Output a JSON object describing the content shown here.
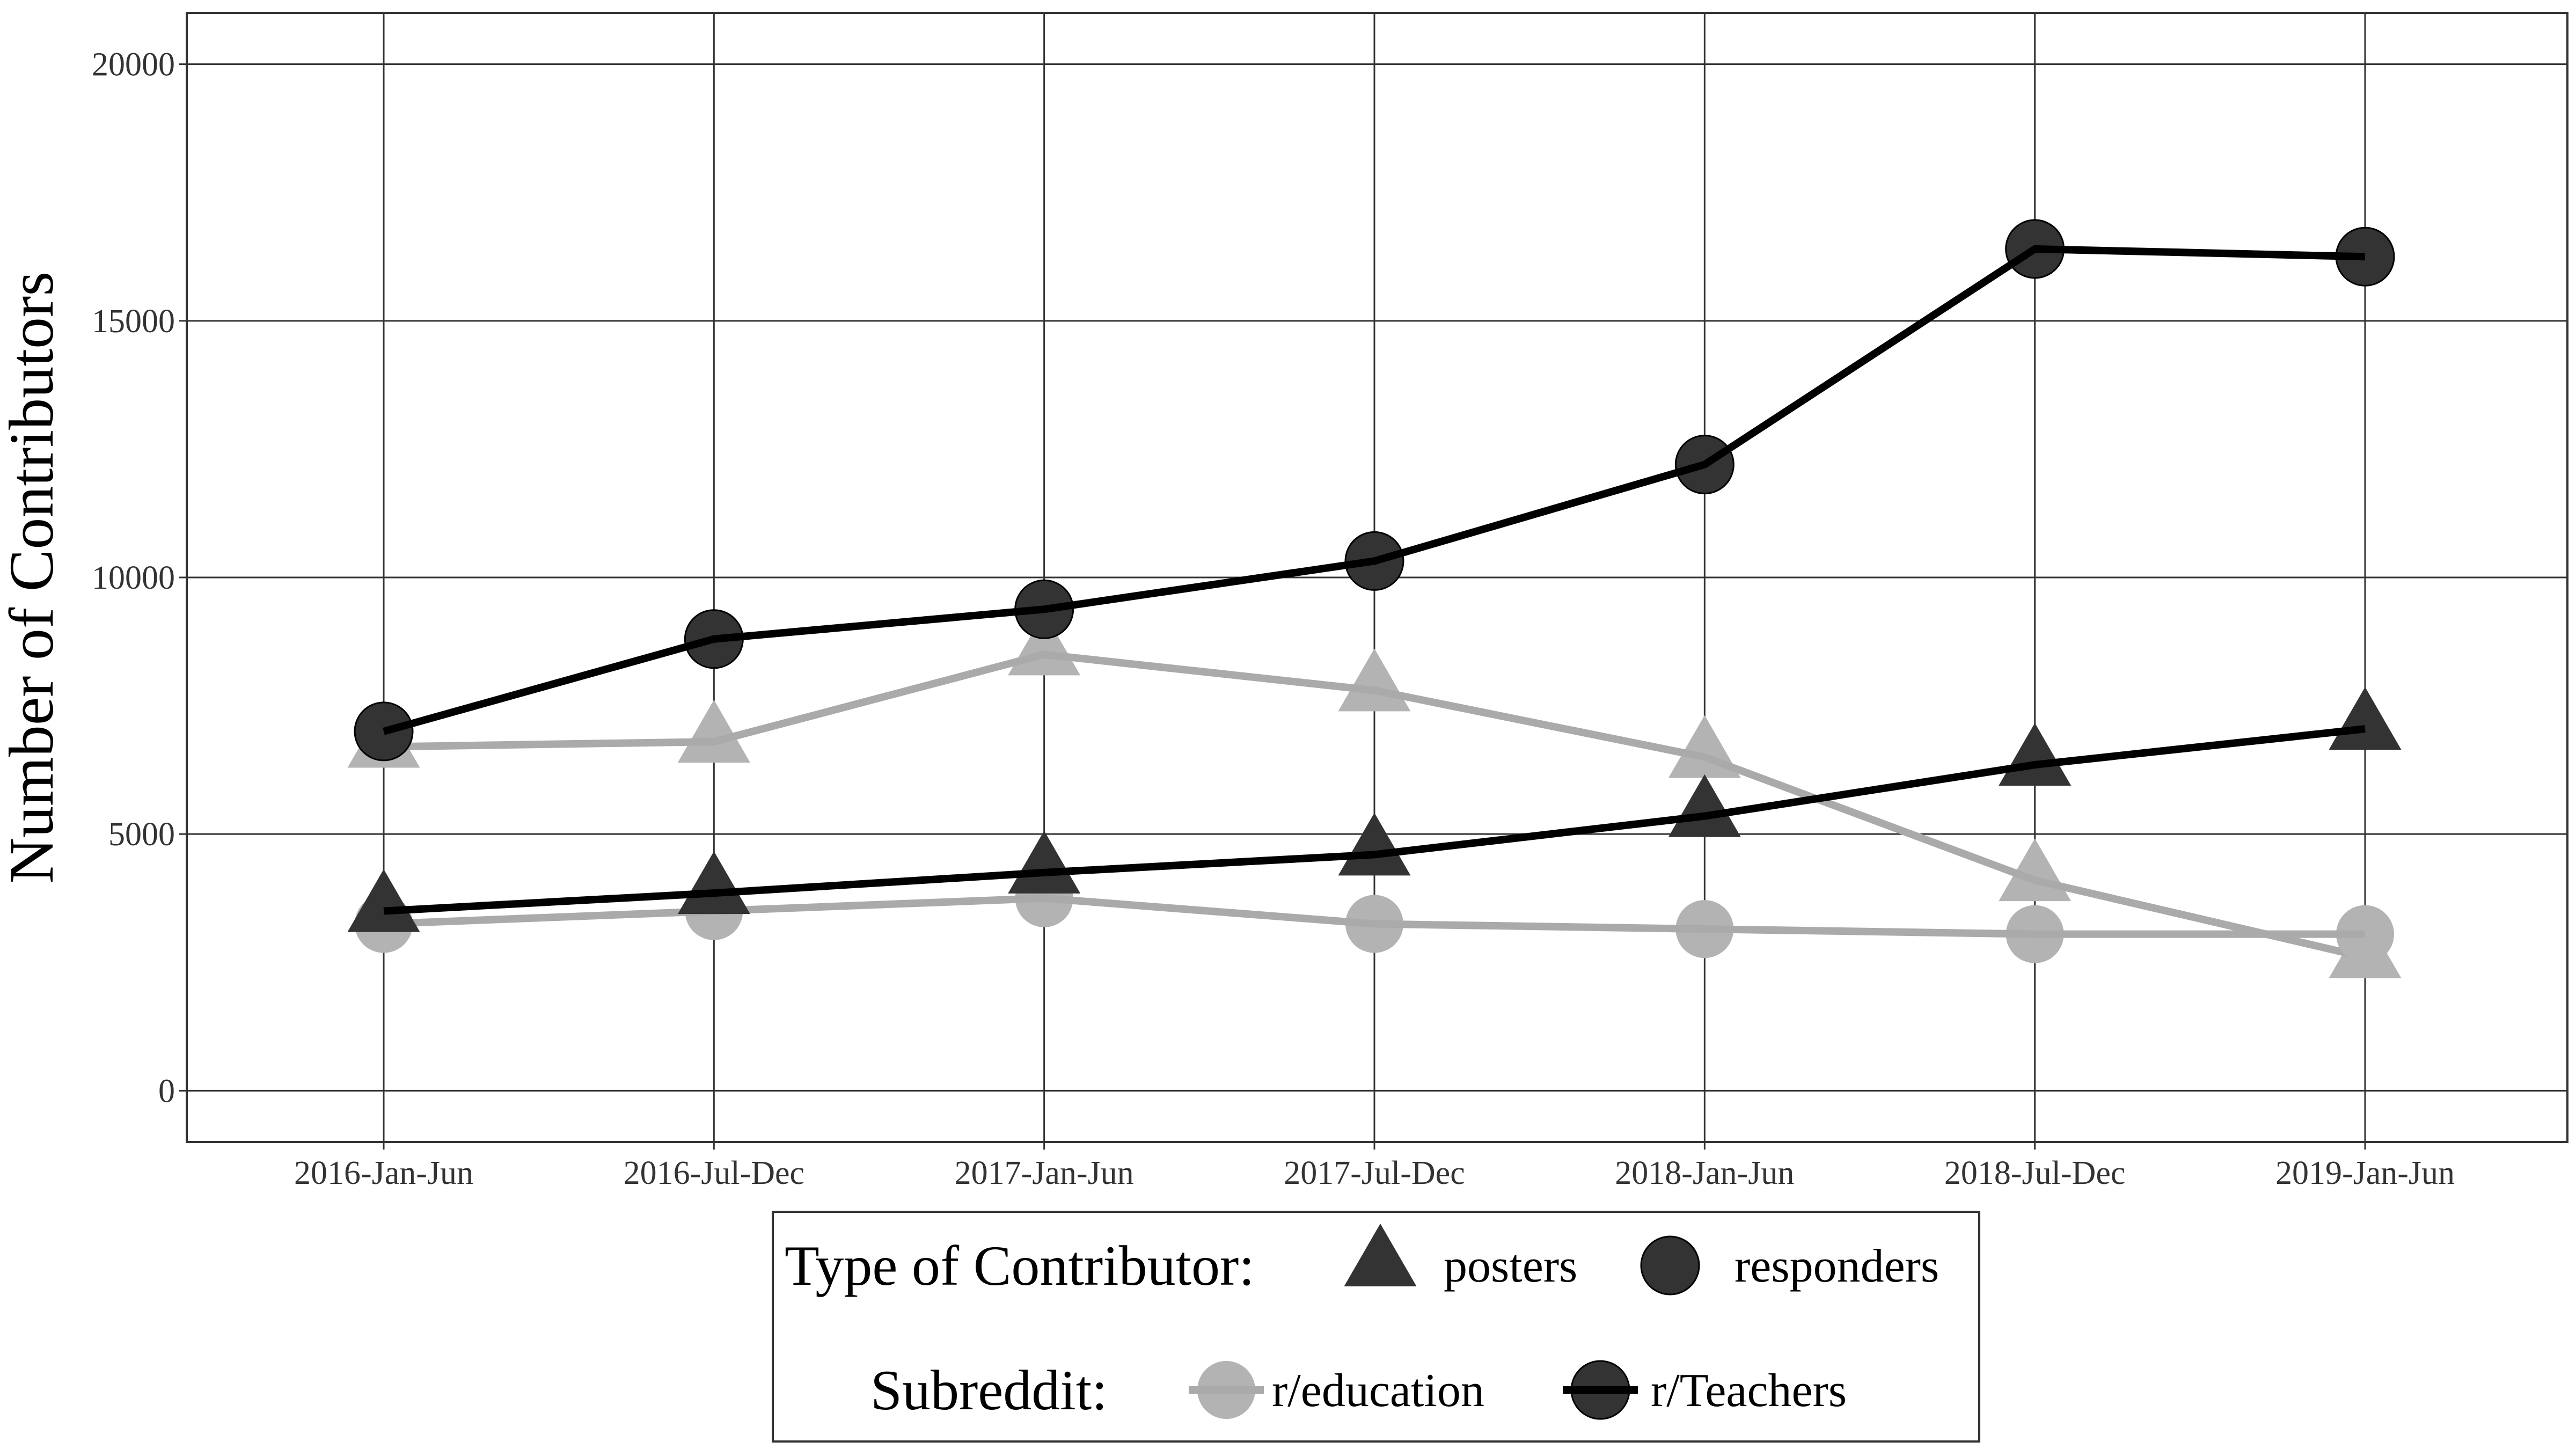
{
  "chart_data": {
    "type": "line",
    "title": "",
    "xlabel": "",
    "ylabel": "Number of Contributors",
    "categories": [
      "2016-Jan-Jun",
      "2016-Jul-Dec",
      "2017-Jan-Jun",
      "2017-Jul-Dec",
      "2018-Jan-Jun",
      "2018-Jul-Dec",
      "2019-Jan-Jun"
    ],
    "ylim": [
      -1000,
      21000
    ],
    "yticks": [
      0,
      5000,
      10000,
      15000,
      20000
    ],
    "grid": true,
    "legend_position": "bottom",
    "series": [
      {
        "name": "r/Teachers responders",
        "subreddit": "r/Teachers",
        "type": "responders",
        "color": "#000000",
        "marker_color": "#333333",
        "marker": "circle",
        "values": [
          7000,
          8800,
          9380,
          10320,
          12200,
          16400,
          16250
        ]
      },
      {
        "name": "r/Teachers posters",
        "subreddit": "r/Teachers",
        "type": "posters",
        "color": "#000000",
        "marker_color": "#333333",
        "marker": "triangle",
        "values": [
          3500,
          3850,
          4250,
          4600,
          5350,
          6350,
          7050
        ]
      },
      {
        "name": "r/education posters",
        "subreddit": "r/education",
        "type": "posters",
        "color": "#aaaaaa",
        "marker_color": "#b3b3b3",
        "marker": "triangle",
        "values": [
          6700,
          6800,
          8500,
          7800,
          6500,
          4100,
          2600
        ]
      },
      {
        "name": "r/education responders",
        "subreddit": "r/education",
        "type": "responders",
        "color": "#aaaaaa",
        "marker_color": "#b3b3b3",
        "marker": "circle",
        "values": [
          3250,
          3500,
          3750,
          3250,
          3150,
          3050,
          3050
        ]
      }
    ]
  },
  "legend": {
    "type_title": "Type of Contributor:",
    "type_items": [
      {
        "label": "posters",
        "marker": "triangle",
        "color": "#333333"
      },
      {
        "label": "responders",
        "marker": "circle",
        "color": "#333333"
      }
    ],
    "subreddit_title": "Subreddit:",
    "subreddit_items": [
      {
        "label": "r/education",
        "color": "#b3b3b3",
        "line_color": "#aaaaaa"
      },
      {
        "label": "r/Teachers",
        "color": "#333333",
        "line_color": "#000000"
      }
    ]
  }
}
